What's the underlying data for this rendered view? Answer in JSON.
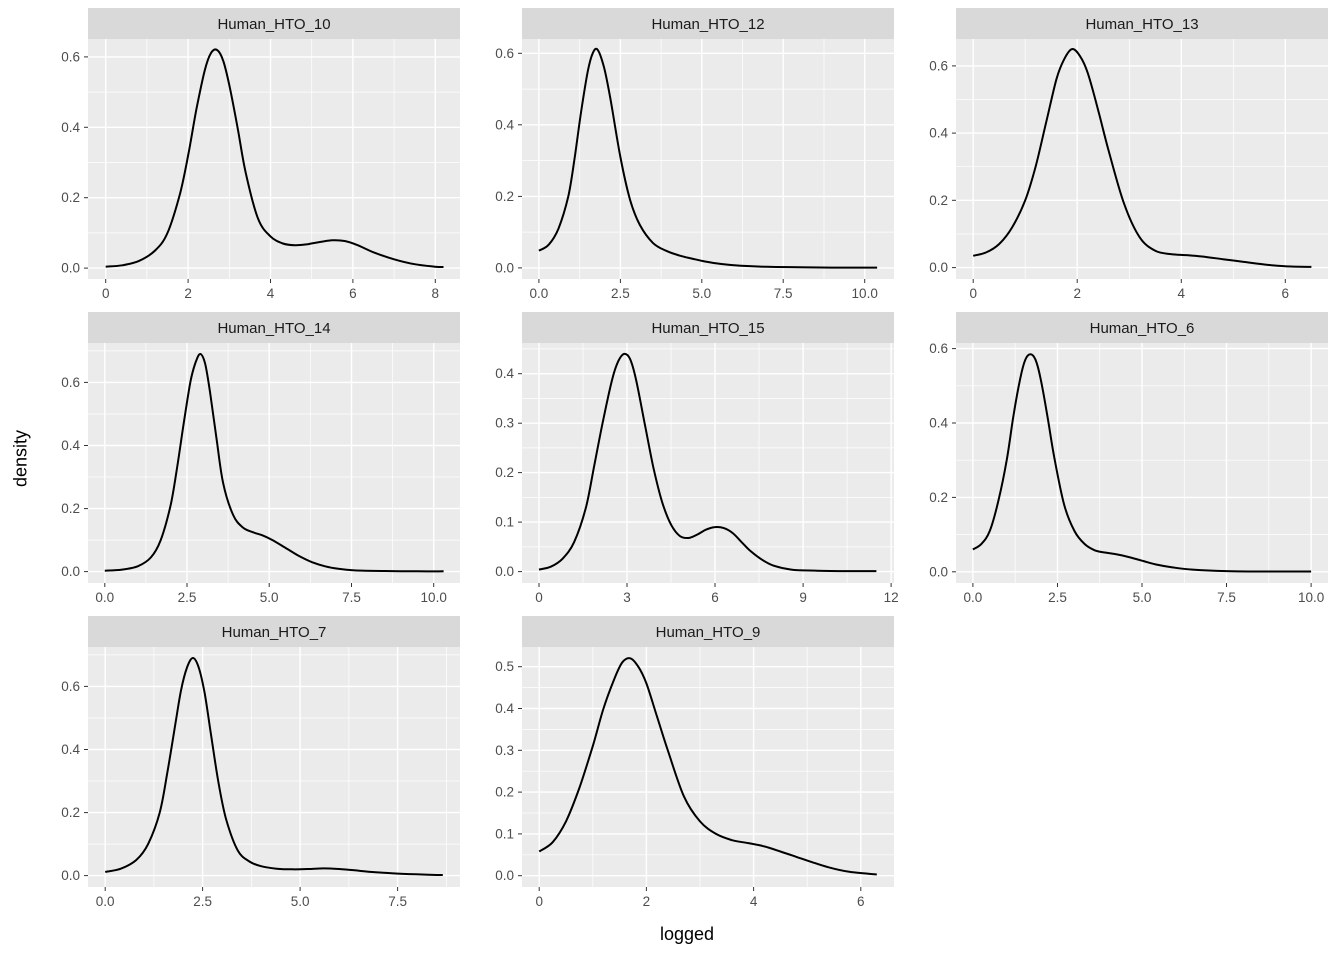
{
  "figure": {
    "x_axis_label": "logged",
    "y_axis_label": "density",
    "colors": {
      "panel_bg": "#EBEBEB",
      "strip_bg": "#D9D9D9",
      "strip_text": "#1A1A1A",
      "grid_major": "#FFFFFF",
      "grid_minor": "#FFFFFF",
      "curve": "#000000",
      "tick": "#333333",
      "tick_label": "#4D4D4D"
    }
  },
  "chart_data": {
    "type": "line",
    "subtype": "faceted-density",
    "xlabel": "logged",
    "ylabel": "density",
    "grid": "on",
    "legend": "none",
    "facets": [
      {
        "title": "Human_HTO_10",
        "xlim": [
          -0.43,
          8.6
        ],
        "ylim": [
          -0.031,
          0.651
        ],
        "x_ticks": {
          "values": [
            0,
            2,
            4,
            6,
            8
          ],
          "labels": [
            "0",
            "2",
            "4",
            "6",
            "8"
          ]
        },
        "y_ticks": {
          "values": [
            0,
            0.2,
            0.4,
            0.6
          ],
          "labels": [
            "0.0",
            "0.2",
            "0.4",
            "0.6"
          ]
        },
        "series": {
          "x": [
            0,
            0.4,
            0.8,
            1.2,
            1.5,
            1.8,
            2.0,
            2.2,
            2.4,
            2.55,
            2.7,
            2.85,
            3.0,
            3.2,
            3.4,
            3.7,
            4.0,
            4.3,
            4.6,
            4.9,
            5.2,
            5.5,
            5.8,
            6.1,
            6.5,
            7.0,
            7.5,
            8.0,
            8.2
          ],
          "y": [
            0.004,
            0.008,
            0.02,
            0.05,
            0.1,
            0.21,
            0.32,
            0.45,
            0.56,
            0.61,
            0.62,
            0.59,
            0.52,
            0.4,
            0.27,
            0.14,
            0.09,
            0.07,
            0.065,
            0.068,
            0.074,
            0.079,
            0.077,
            0.066,
            0.045,
            0.025,
            0.011,
            0.004,
            0.003
          ]
        }
      },
      {
        "title": "Human_HTO_12",
        "xlim": [
          -0.52,
          10.9
        ],
        "ylim": [
          -0.031,
          0.64
        ],
        "x_ticks": {
          "values": [
            0,
            2.5,
            5,
            7.5,
            10
          ],
          "labels": [
            "0.0",
            "2.5",
            "5.0",
            "7.5",
            "10.0"
          ]
        },
        "y_ticks": {
          "values": [
            0,
            0.2,
            0.4,
            0.6
          ],
          "labels": [
            "0.0",
            "0.2",
            "0.4",
            "0.6"
          ]
        },
        "series": {
          "x": [
            0,
            0.3,
            0.6,
            0.9,
            1.1,
            1.3,
            1.5,
            1.65,
            1.8,
            2.0,
            2.2,
            2.5,
            2.8,
            3.1,
            3.5,
            3.9,
            4.3,
            4.7,
            5.1,
            5.6,
            6.2,
            7.0,
            8.0,
            9.0,
            10.0,
            10.38
          ],
          "y": [
            0.048,
            0.065,
            0.11,
            0.2,
            0.31,
            0.44,
            0.55,
            0.6,
            0.61,
            0.56,
            0.47,
            0.31,
            0.19,
            0.12,
            0.07,
            0.048,
            0.035,
            0.026,
            0.018,
            0.011,
            0.006,
            0.003,
            0.002,
            0.001,
            0.001,
            0.001
          ]
        }
      },
      {
        "title": "Human_HTO_13",
        "xlim": [
          -0.33,
          6.82
        ],
        "ylim": [
          -0.034,
          0.68
        ],
        "x_ticks": {
          "values": [
            0,
            2,
            4,
            6
          ],
          "labels": [
            "0",
            "2",
            "4",
            "6"
          ]
        },
        "y_ticks": {
          "values": [
            0,
            0.2,
            0.4,
            0.6
          ],
          "labels": [
            "0.0",
            "0.2",
            "0.4",
            "0.6"
          ]
        },
        "series": {
          "x": [
            0,
            0.25,
            0.5,
            0.75,
            1.0,
            1.2,
            1.4,
            1.6,
            1.75,
            1.9,
            2.05,
            2.2,
            2.4,
            2.6,
            2.9,
            3.2,
            3.5,
            3.8,
            4.1,
            4.4,
            4.8,
            5.2,
            5.6,
            6.0,
            6.5
          ],
          "y": [
            0.035,
            0.045,
            0.07,
            0.12,
            0.2,
            0.3,
            0.43,
            0.56,
            0.62,
            0.65,
            0.63,
            0.58,
            0.47,
            0.35,
            0.19,
            0.09,
            0.05,
            0.04,
            0.037,
            0.033,
            0.025,
            0.017,
            0.009,
            0.004,
            0.002
          ]
        }
      },
      {
        "title": "Human_HTO_14",
        "xlim": [
          -0.51,
          10.8
        ],
        "ylim": [
          -0.036,
          0.725
        ],
        "x_ticks": {
          "values": [
            0,
            2.5,
            5,
            7.5,
            10
          ],
          "labels": [
            "0.0",
            "2.5",
            "5.0",
            "7.5",
            "10.0"
          ]
        },
        "y_ticks": {
          "values": [
            0,
            0.2,
            0.4,
            0.6
          ],
          "labels": [
            "0.0",
            "0.2",
            "0.4",
            "0.6"
          ]
        },
        "series": {
          "x": [
            0,
            0.5,
            1.0,
            1.4,
            1.7,
            2.0,
            2.2,
            2.4,
            2.6,
            2.75,
            2.9,
            3.05,
            3.2,
            3.4,
            3.6,
            3.9,
            4.2,
            4.5,
            4.8,
            5.1,
            5.5,
            5.9,
            6.3,
            6.7,
            7.1,
            7.6,
            8.5,
            9.5,
            10.3
          ],
          "y": [
            0.003,
            0.006,
            0.017,
            0.045,
            0.1,
            0.21,
            0.33,
            0.47,
            0.6,
            0.66,
            0.69,
            0.66,
            0.57,
            0.42,
            0.28,
            0.18,
            0.14,
            0.125,
            0.115,
            0.1,
            0.075,
            0.05,
            0.03,
            0.017,
            0.009,
            0.004,
            0.002,
            0.001,
            0.001
          ]
        }
      },
      {
        "title": "Human_HTO_15",
        "xlim": [
          -0.58,
          12.1
        ],
        "ylim": [
          -0.023,
          0.462
        ],
        "x_ticks": {
          "values": [
            0,
            3,
            6,
            9,
            12
          ],
          "labels": [
            "0",
            "3",
            "6",
            "9",
            "12"
          ]
        },
        "y_ticks": {
          "values": [
            0,
            0.1,
            0.2,
            0.3,
            0.4
          ],
          "labels": [
            "0.0",
            "0.1",
            "0.2",
            "0.3",
            "0.4"
          ]
        },
        "series": {
          "x": [
            0,
            0.4,
            0.8,
            1.2,
            1.6,
            1.9,
            2.2,
            2.5,
            2.7,
            2.9,
            3.1,
            3.3,
            3.6,
            3.9,
            4.2,
            4.5,
            4.8,
            5.1,
            5.4,
            5.7,
            6.0,
            6.3,
            6.6,
            6.9,
            7.2,
            7.6,
            8.0,
            8.6,
            9.4,
            10.4,
            11.5
          ],
          "y": [
            0.004,
            0.01,
            0.026,
            0.06,
            0.13,
            0.22,
            0.31,
            0.39,
            0.425,
            0.44,
            0.43,
            0.39,
            0.3,
            0.21,
            0.14,
            0.095,
            0.072,
            0.068,
            0.075,
            0.085,
            0.09,
            0.088,
            0.078,
            0.06,
            0.042,
            0.024,
            0.012,
            0.004,
            0.002,
            0.001,
            0.001
          ]
        }
      },
      {
        "title": "Human_HTO_6",
        "xlim": [
          -0.5,
          10.5
        ],
        "ylim": [
          -0.03,
          0.615
        ],
        "x_ticks": {
          "values": [
            0,
            2.5,
            5,
            7.5,
            10
          ],
          "labels": [
            "0.0",
            "2.5",
            "5.0",
            "7.5",
            "10.0"
          ]
        },
        "y_ticks": {
          "values": [
            0,
            0.2,
            0.4,
            0.6
          ],
          "labels": [
            "0.0",
            "0.2",
            "0.4",
            "0.6"
          ]
        },
        "series": {
          "x": [
            0,
            0.25,
            0.5,
            0.75,
            1.0,
            1.2,
            1.4,
            1.55,
            1.7,
            1.85,
            2.0,
            2.2,
            2.4,
            2.7,
            3.0,
            3.3,
            3.6,
            3.9,
            4.2,
            4.6,
            5.0,
            5.4,
            5.9,
            6.5,
            7.5,
            8.5,
            10.0
          ],
          "y": [
            0.06,
            0.075,
            0.11,
            0.19,
            0.3,
            0.42,
            0.52,
            0.57,
            0.585,
            0.57,
            0.52,
            0.42,
            0.31,
            0.18,
            0.11,
            0.075,
            0.058,
            0.052,
            0.048,
            0.04,
            0.03,
            0.02,
            0.012,
            0.006,
            0.002,
            0.001,
            0.001
          ]
        }
      },
      {
        "title": "Human_HTO_7",
        "xlim": [
          -0.44,
          9.1
        ],
        "ylim": [
          -0.036,
          0.725
        ],
        "x_ticks": {
          "values": [
            0,
            2.5,
            5,
            7.5
          ],
          "labels": [
            "0.0",
            "2.5",
            "5.0",
            "7.5"
          ]
        },
        "y_ticks": {
          "values": [
            0,
            0.2,
            0.4,
            0.6
          ],
          "labels": [
            "0.0",
            "0.2",
            "0.4",
            "0.6"
          ]
        },
        "series": {
          "x": [
            0,
            0.4,
            0.8,
            1.1,
            1.4,
            1.6,
            1.8,
            1.95,
            2.1,
            2.25,
            2.4,
            2.55,
            2.7,
            2.9,
            3.1,
            3.4,
            3.7,
            4.0,
            4.4,
            4.8,
            5.2,
            5.6,
            6.0,
            6.4,
            6.8,
            7.3,
            7.8,
            8.3,
            8.66
          ],
          "y": [
            0.012,
            0.022,
            0.05,
            0.1,
            0.2,
            0.33,
            0.48,
            0.59,
            0.66,
            0.69,
            0.66,
            0.58,
            0.46,
            0.3,
            0.18,
            0.08,
            0.045,
            0.03,
            0.022,
            0.02,
            0.021,
            0.023,
            0.021,
            0.017,
            0.012,
            0.008,
            0.005,
            0.003,
            0.002
          ]
        }
      },
      {
        "title": "Human_HTO_9",
        "xlim": [
          -0.32,
          6.62
        ],
        "ylim": [
          -0.027,
          0.547
        ],
        "x_ticks": {
          "values": [
            0,
            2,
            4,
            6
          ],
          "labels": [
            "0",
            "2",
            "4",
            "6"
          ]
        },
        "y_ticks": {
          "values": [
            0,
            0.1,
            0.2,
            0.3,
            0.4,
            0.5
          ],
          "labels": [
            "0.0",
            "0.1",
            "0.2",
            "0.3",
            "0.4",
            "0.5"
          ]
        },
        "series": {
          "x": [
            0,
            0.25,
            0.5,
            0.75,
            1.0,
            1.2,
            1.4,
            1.55,
            1.7,
            1.85,
            2.0,
            2.2,
            2.4,
            2.7,
            3.0,
            3.3,
            3.6,
            3.9,
            4.2,
            4.5,
            4.8,
            5.1,
            5.4,
            5.8,
            6.3
          ],
          "y": [
            0.058,
            0.08,
            0.13,
            0.21,
            0.31,
            0.4,
            0.47,
            0.51,
            0.52,
            0.5,
            0.46,
            0.38,
            0.3,
            0.19,
            0.13,
            0.1,
            0.085,
            0.078,
            0.07,
            0.058,
            0.045,
            0.032,
            0.02,
            0.009,
            0.003
          ]
        }
      }
    ]
  }
}
